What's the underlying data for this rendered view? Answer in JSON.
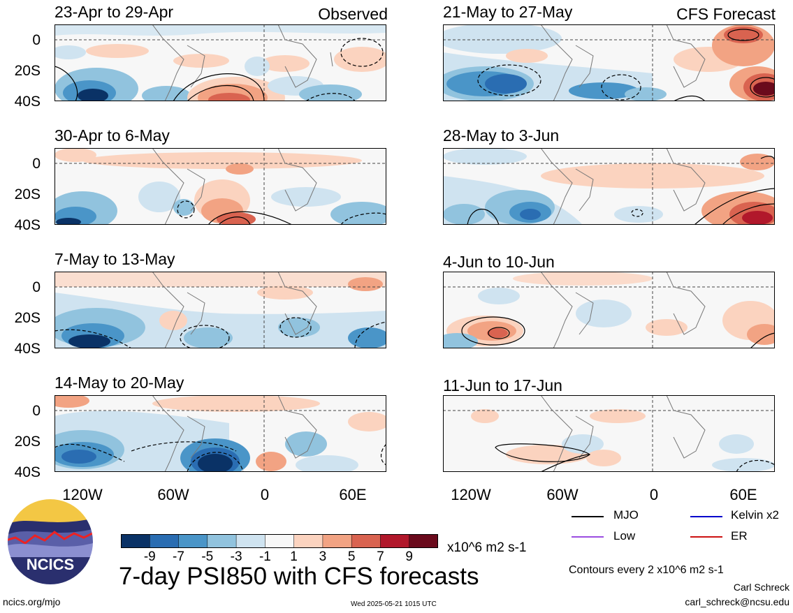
{
  "panels": [
    {
      "title": "23-Apr to 29-Apr",
      "label": "Observed"
    },
    {
      "title": "30-Apr to 6-May",
      "label": ""
    },
    {
      "title": "7-May to 13-May",
      "label": ""
    },
    {
      "title": "14-May to 20-May",
      "label": ""
    },
    {
      "title": "21-May to 27-May",
      "label": "CFS Forecast"
    },
    {
      "title": "28-May to 3-Jun",
      "label": ""
    },
    {
      "title": "4-Jun to 10-Jun",
      "label": ""
    },
    {
      "title": "11-Jun to 17-Jun",
      "label": ""
    }
  ],
  "y_ticks": [
    "0",
    "20S",
    "40S"
  ],
  "x_ticks": [
    "120W",
    "60W",
    "0",
    "60E"
  ],
  "colorbar": {
    "colors": [
      "#0a3266",
      "#2a6db2",
      "#4a95c8",
      "#91c3de",
      "#cfe3f0",
      "#f7f7f7",
      "#fbd3bf",
      "#f2a383",
      "#d96350",
      "#b1182b",
      "#6a0a1c"
    ],
    "labels": [
      "-9",
      "-7",
      "-5",
      "-3",
      "-1",
      "1",
      "3",
      "5",
      "7",
      "9"
    ],
    "units": "x10^6 m2 s-1"
  },
  "legend": {
    "items": [
      {
        "name": "MJO",
        "color": "#000000"
      },
      {
        "name": "Kelvin x2",
        "color": "#0000cc"
      },
      {
        "name": "Low",
        "color": "#9b4de0"
      },
      {
        "name": "ER",
        "color": "#cc1111"
      }
    ],
    "contours": "Contours every 2 x10^6 m2 s-1"
  },
  "main_title": "7-day PSI850 with CFS forecasts",
  "logo_text": "NCICS",
  "footer": {
    "site": "ncics.org/mjo",
    "timestamp": "Wed 2025-05-21 1015 UTC",
    "author": "Carl Schreck",
    "email": "carl_schreck@ncsu.edu"
  }
}
